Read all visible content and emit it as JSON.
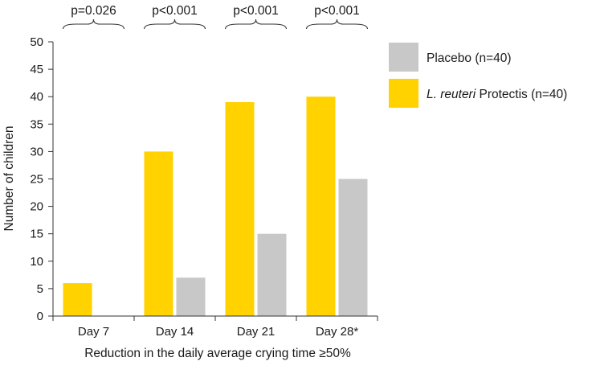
{
  "chart_data": {
    "type": "bar",
    "categories": [
      "Day 7",
      "Day 14",
      "Day 21",
      "Day 28*"
    ],
    "series": [
      {
        "name": "L. reuteri Protectis (n=40)",
        "name_italic": "L. reuteri",
        "name_rest": " Protectis (n=40)",
        "color": "#ffd200",
        "values": [
          6,
          30,
          39,
          40
        ]
      },
      {
        "name": "Placebo (n=40)",
        "color": "#c8c8c8",
        "values": [
          0,
          7,
          15,
          25
        ]
      }
    ],
    "ylabel": "Number of children",
    "xlabel": "Reduction in the daily average crying time ≥50%",
    "ylim": [
      0,
      50
    ],
    "yticks": [
      0,
      5,
      10,
      15,
      20,
      25,
      30,
      35,
      40,
      45,
      50
    ],
    "grid": false,
    "legend": "right",
    "legend_order": [
      1,
      0
    ],
    "annotations": [
      "p=0.026",
      "p<0.001",
      "p<0.001",
      "p<0.001"
    ]
  }
}
